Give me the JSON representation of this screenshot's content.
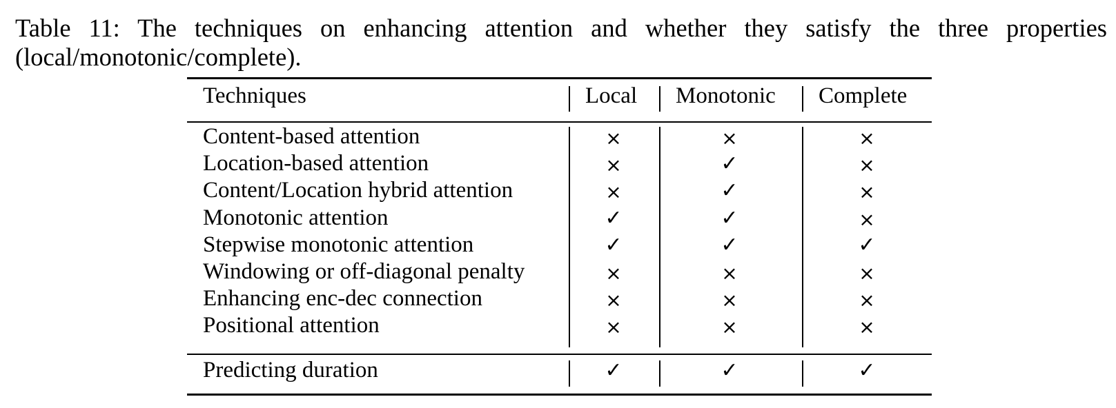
{
  "caption": {
    "line1": "Table 11: The techniques on enhancing attention and whether they satisfy the three properties",
    "line2": "(local/monotonic/complete)."
  },
  "table": {
    "headers": [
      "Techniques",
      "Local",
      "Monotonic",
      "Complete"
    ],
    "rows": [
      {
        "technique": "Content-based attention",
        "local": "×",
        "monotonic": "×",
        "complete": "×"
      },
      {
        "technique": "Location-based attention",
        "local": "×",
        "monotonic": "✓",
        "complete": "×"
      },
      {
        "technique": "Content/Location hybrid attention",
        "local": "×",
        "monotonic": "✓",
        "complete": "×"
      },
      {
        "technique": "Monotonic attention",
        "local": "✓",
        "monotonic": "✓",
        "complete": "×"
      },
      {
        "technique": "Stepwise monotonic attention",
        "local": "✓",
        "monotonic": "✓",
        "complete": "✓"
      },
      {
        "technique": "Windowing or off-diagonal penalty",
        "local": "×",
        "monotonic": "×",
        "complete": "×"
      },
      {
        "technique": "Enhancing enc-dec connection",
        "local": "×",
        "monotonic": "×",
        "complete": "×"
      },
      {
        "technique": "Positional attention",
        "local": "×",
        "monotonic": "×",
        "complete": "×"
      }
    ],
    "footer_row": {
      "technique": "Predicting duration",
      "local": "✓",
      "monotonic": "✓",
      "complete": "✓"
    }
  }
}
